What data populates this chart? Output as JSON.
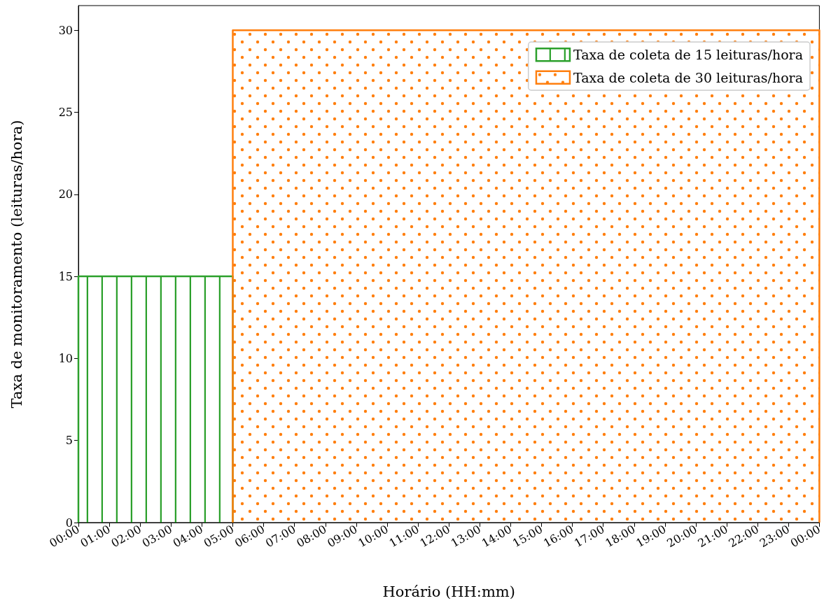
{
  "chart_data": {
    "type": "area",
    "xlabel": "Horário (HH:mm)",
    "ylabel": "Taxa de monitoramento (leituras/hora)",
    "series": [
      {
        "name": "Taxa de coleta de 15 leituras/hora",
        "color": "#2ca02c",
        "x": [
          0,
          0,
          5,
          5
        ],
        "values": [
          0,
          15,
          15,
          0
        ]
      },
      {
        "name": "Taxa de coleta de 30 leituras/hora",
        "color": "#ff7f0e",
        "x": [
          5,
          5,
          24,
          24
        ],
        "values": [
          0,
          30,
          30,
          0
        ]
      }
    ],
    "xlim": [
      0,
      24
    ],
    "xticks": [
      {
        "value": 0,
        "label": "00:00"
      },
      {
        "value": 1,
        "label": "01:00"
      },
      {
        "value": 2,
        "label": "02:00"
      },
      {
        "value": 3,
        "label": "03:00"
      },
      {
        "value": 4,
        "label": "04:00"
      },
      {
        "value": 5,
        "label": "05:00"
      },
      {
        "value": 6,
        "label": "06:00"
      },
      {
        "value": 7,
        "label": "07:00"
      },
      {
        "value": 8,
        "label": "08:00"
      },
      {
        "value": 9,
        "label": "09:00"
      },
      {
        "value": 10,
        "label": "10:00"
      },
      {
        "value": 11,
        "label": "11:00"
      },
      {
        "value": 12,
        "label": "12:00"
      },
      {
        "value": 13,
        "label": "13:00"
      },
      {
        "value": 14,
        "label": "14:00"
      },
      {
        "value": 15,
        "label": "15:00"
      },
      {
        "value": 16,
        "label": "16:00"
      },
      {
        "value": 17,
        "label": "17:00"
      },
      {
        "value": 18,
        "label": "18:00"
      },
      {
        "value": 19,
        "label": "19:00"
      },
      {
        "value": 20,
        "label": "20:00"
      },
      {
        "value": 21,
        "label": "21:00"
      },
      {
        "value": 22,
        "label": "22:00"
      },
      {
        "value": 23,
        "label": "23:00"
      },
      {
        "value": 24,
        "label": "00:00"
      }
    ],
    "ylim": [
      0,
      31.5
    ],
    "yticks": [
      0,
      5,
      10,
      15,
      20,
      25,
      30
    ],
    "grid": false,
    "legend": "top right"
  }
}
